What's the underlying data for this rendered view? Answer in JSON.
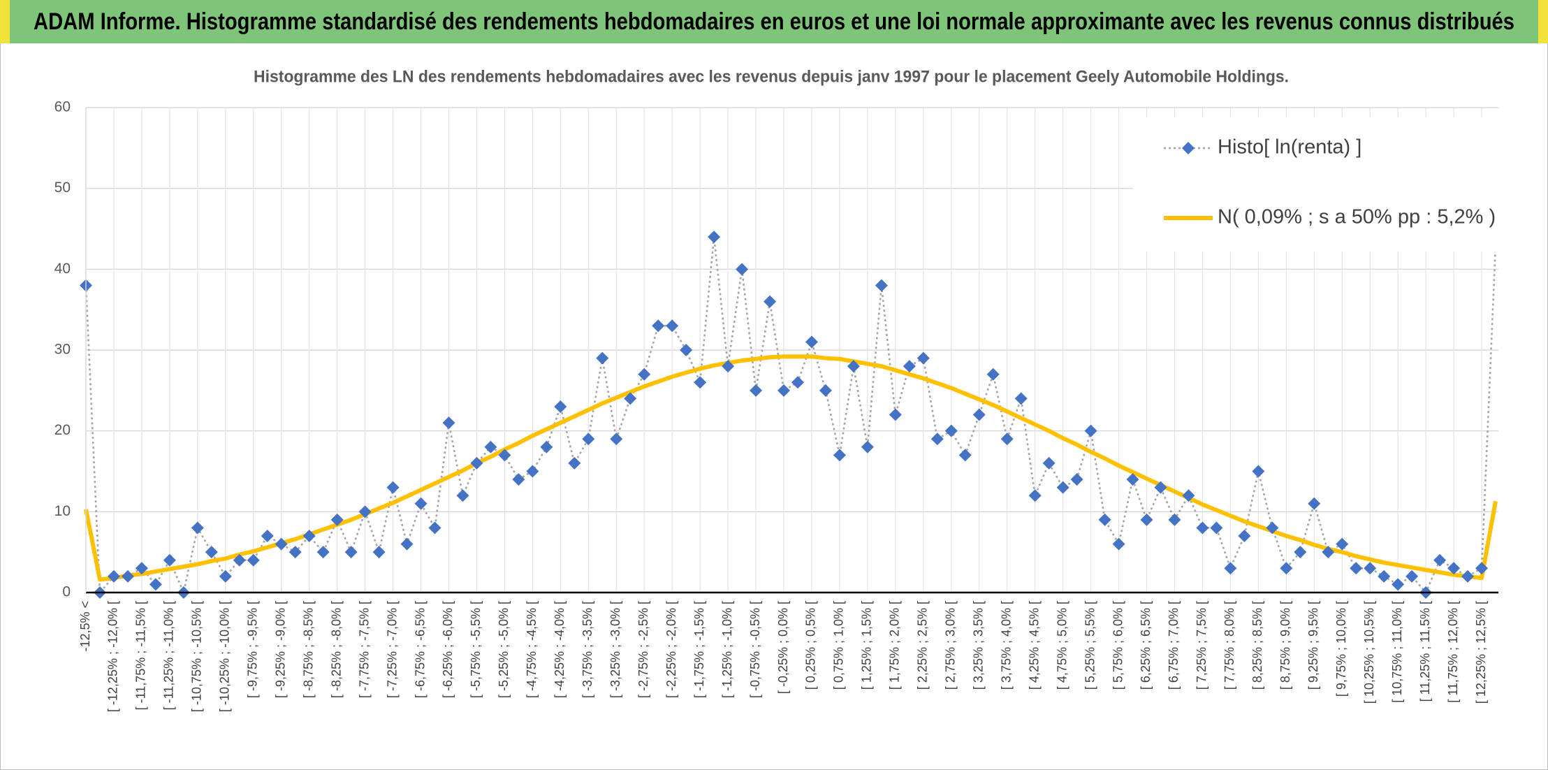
{
  "chart_data": {
    "type": "line",
    "title": "ADAM Informe. Histogramme standardisé des rendements hebdomadaires en euros et une loi normale approximante avec les revenus connus distribués",
    "subtitle": "Histogramme des LN des rendements hebdomadaires avec les revenus depuis janv 1997 pour le placement Geely Automobile Holdings.",
    "categories": [
      "-12,5% <",
      null,
      "[ -12,25% ; -12,0% [",
      null,
      "[ -11,75% ; -11,5% [",
      null,
      "[ -11,25% ; -11,0% [",
      null,
      "[ -10,75% ; -10,5% [",
      null,
      "[ -10,25% ; -10,0% [",
      null,
      "[ -9,75% ; -9,5% [",
      null,
      "[ -9,25% ; -9,0% [",
      null,
      "[ -8,75% ; -8,5% [",
      null,
      "[ -8,25% ; -8,0% [",
      null,
      "[ -7,75% ; -7,5% [",
      null,
      "[ -7,25% ; -7,0% [",
      null,
      "[ -6,75% ; -6,5% [",
      null,
      "[ -6,25% ; -6,0% [",
      null,
      "[ -5,75% ; -5,5% [",
      null,
      "[ -5,25% ; -5,0% [",
      null,
      "[ -4,75% ; -4,5% [",
      null,
      "[ -4,25% ; -4,0% [",
      null,
      "[ -3,75% ; -3,5% [",
      null,
      "[ -3,25% ; -3,0% [",
      null,
      "[ -2,75% ; -2,5% [",
      null,
      "[ -2,25% ; -2,0% [",
      null,
      "[ -1,75% ; -1,5% [",
      null,
      "[ -1,25% ; -1,0% [",
      null,
      "[ -0,75% ; -0,5% [",
      null,
      "[ -0,25% ; 0,0% [",
      null,
      "[ 0,25% ; 0,5% [",
      null,
      "[ 0,75% ; 1,0% [",
      null,
      "[ 1,25% ; 1,5% [",
      null,
      "[ 1,75% ; 2,0% [",
      null,
      "[ 2,25% ; 2,5% [",
      null,
      "[ 2,75% ; 3,0% [",
      null,
      "[ 3,25% ; 3,5% [",
      null,
      "[ 3,75% ; 4,0% [",
      null,
      "[ 4,25% ; 4,5% [",
      null,
      "[ 4,75% ; 5,0% [",
      null,
      "[ 5,25% ; 5,5% [",
      null,
      "[ 5,75% ; 6,0% [",
      null,
      "[ 6,25% ; 6,5% [",
      null,
      "[ 6,75% ; 7,0% [",
      null,
      "[ 7,25% ; 7,5% [",
      null,
      "[ 7,75% ; 8,0% [",
      null,
      "[ 8,25% ; 8,5% [",
      null,
      "[ 8,75% ; 9,0% [",
      null,
      "[ 9,25% ; 9,5% [",
      null,
      "[ 9,75% ; 10,0% [",
      null,
      "[ 10,25% ; 10,5% [",
      null,
      "[ 10,75% ; 11,0% [",
      null,
      "[ 11,25% ; 11,5% [",
      null,
      "[ 11,75% ; 12,0% [",
      null,
      "[ 12,25% ; 12,5% [",
      null
    ],
    "series": [
      {
        "name": "Histo[ ln(renta) ]",
        "color": "#4472c4",
        "line_color": "#a6a6a6",
        "marker": "diamond",
        "values": [
          38,
          0,
          2,
          2,
          3,
          1,
          4,
          0,
          8,
          5,
          2,
          4,
          4,
          7,
          6,
          5,
          7,
          5,
          9,
          5,
          10,
          5,
          13,
          6,
          11,
          8,
          21,
          12,
          16,
          18,
          17,
          14,
          15,
          18,
          23,
          16,
          19,
          29,
          19,
          24,
          27,
          33,
          33,
          30,
          26,
          44,
          28,
          40,
          25,
          36,
          25,
          26,
          31,
          25,
          17,
          28,
          18,
          38,
          22,
          28,
          29,
          19,
          20,
          17,
          22,
          27,
          19,
          24,
          12,
          16,
          13,
          14,
          20,
          9,
          6,
          14,
          9,
          13,
          9,
          12,
          8,
          8,
          3,
          7,
          15,
          8,
          3,
          5,
          11,
          5,
          6,
          3,
          3,
          2,
          1,
          2,
          0,
          4,
          3,
          2,
          3,
          43
        ]
      },
      {
        "name": "N( 0,09% ; s a 50% pp : 5,2% )",
        "color": "#ffc000",
        "values": [
          10.3,
          1.6,
          1.8,
          2.1,
          2.3,
          2.6,
          2.9,
          3.2,
          3.5,
          3.9,
          4.2,
          4.7,
          5.1,
          5.6,
          6.1,
          6.6,
          7.2,
          7.8,
          8.4,
          9.0,
          9.7,
          10.4,
          11.1,
          11.9,
          12.7,
          13.5,
          14.3,
          15.1,
          16.0,
          16.8,
          17.7,
          18.5,
          19.4,
          20.2,
          21.0,
          21.8,
          22.6,
          23.4,
          24.1,
          24.8,
          25.5,
          26.1,
          26.7,
          27.2,
          27.7,
          28.1,
          28.4,
          28.7,
          28.9,
          29.1,
          29.2,
          29.2,
          29.2,
          29.0,
          28.9,
          28.6,
          28.3,
          28.0,
          27.5,
          27.0,
          26.5,
          25.9,
          25.3,
          24.6,
          23.9,
          23.2,
          22.4,
          21.6,
          20.8,
          20.0,
          19.1,
          18.3,
          17.4,
          16.6,
          15.7,
          14.9,
          14.1,
          13.3,
          12.5,
          11.7,
          10.9,
          10.2,
          9.5,
          8.8,
          8.2,
          7.6,
          7.0,
          6.5,
          5.9,
          5.4,
          5.0,
          4.5,
          4.1,
          3.7,
          3.4,
          3.1,
          2.8,
          2.5,
          2.2,
          2.0,
          1.8,
          11.3
        ]
      }
    ],
    "ylim": [
      0,
      60
    ],
    "yticks": [
      0,
      10,
      20,
      30,
      40,
      50,
      60
    ],
    "grid": true,
    "legend": "top-right"
  }
}
